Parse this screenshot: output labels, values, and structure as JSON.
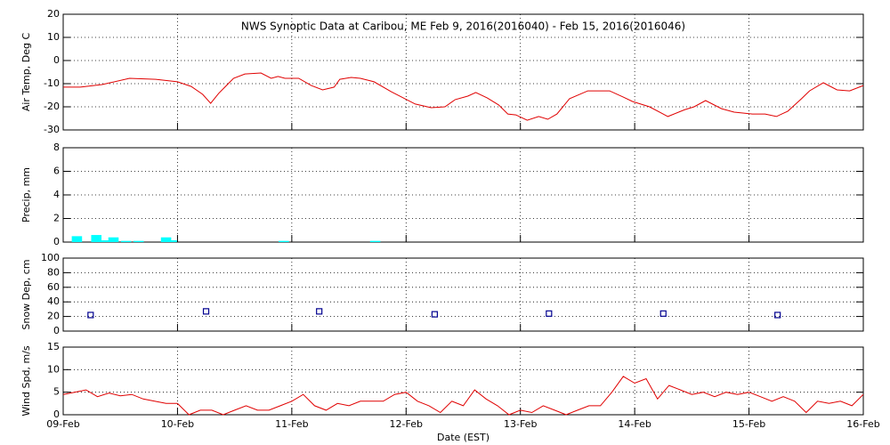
{
  "chart_data": [
    {
      "type": "line",
      "title": "NWS Synoptic Data at Caribou, ME   Feb  9, 2016(2016040) - Feb 15, 2016(2016046)",
      "ylabel": "Air Temp, Deg C",
      "color": "#e00000",
      "grid": true,
      "xlim": [
        0,
        7
      ],
      "ylim": [
        -30,
        20
      ],
      "yticks": [
        -30,
        -20,
        -10,
        0,
        10,
        20
      ],
      "x": [
        0,
        0.15,
        0.34,
        0.58,
        0.81,
        1.0,
        1.12,
        1.22,
        1.29,
        1.36,
        1.49,
        1.59,
        1.73,
        1.82,
        1.88,
        1.94,
        2.06,
        2.17,
        2.27,
        2.37,
        2.42,
        2.52,
        2.6,
        2.72,
        2.87,
        3.08,
        3.22,
        3.34,
        3.43,
        3.54,
        3.61,
        3.71,
        3.81,
        3.89,
        3.96,
        4.06,
        4.16,
        4.24,
        4.32,
        4.43,
        4.59,
        4.78,
        4.9,
        4.98,
        5.13,
        5.29,
        5.44,
        5.52,
        5.62,
        5.76,
        5.87,
        6.03,
        6.14,
        6.24,
        6.34,
        6.46,
        6.53,
        6.65,
        6.77,
        6.88,
        7.0
      ],
      "values": [
        -11.5,
        -11.5,
        -10.4,
        -7.7,
        -8.1,
        -9.2,
        -11.2,
        -14.6,
        -18.5,
        -14.2,
        -7.7,
        -5.8,
        -5.4,
        -7.7,
        -6.9,
        -7.7,
        -7.7,
        -10.8,
        -12.7,
        -11.5,
        -8.1,
        -7.3,
        -7.7,
        -9.2,
        -13.5,
        -18.8,
        -20.4,
        -20,
        -16.9,
        -15.4,
        -13.8,
        -16.2,
        -19.2,
        -23.1,
        -23.5,
        -25.8,
        -24.2,
        -25.4,
        -23.1,
        -16.5,
        -13.1,
        -13.1,
        -15.8,
        -17.7,
        -20,
        -24.2,
        -21.2,
        -20,
        -17.3,
        -20.8,
        -22.3,
        -23.1,
        -23.1,
        -24.2,
        -21.9,
        -16.5,
        -13.1,
        -9.6,
        -12.7,
        -13.1,
        -10.8
      ]
    },
    {
      "type": "bar",
      "ylabel": "Precip, mm",
      "color": "#00ffff",
      "grid": true,
      "xlim": [
        0,
        7
      ],
      "ylim": [
        0,
        8
      ],
      "yticks": [
        0,
        2,
        4,
        6,
        8
      ],
      "x": [
        0.12,
        0.29,
        0.38,
        0.44,
        0.55,
        0.66,
        0.9,
        0.95,
        1.93,
        2.73
      ],
      "values": [
        0.5,
        0.6,
        0.15,
        0.4,
        0.1,
        0.1,
        0.4,
        0.15,
        0.1,
        0.1
      ]
    },
    {
      "type": "scatter",
      "ylabel": "Snow Dep, cm",
      "color": "#000090",
      "grid": true,
      "xlim": [
        0,
        7
      ],
      "ylim": [
        0,
        100
      ],
      "yticks": [
        0,
        20,
        40,
        60,
        80,
        100
      ],
      "x": [
        0.24,
        1.25,
        2.24,
        3.25,
        4.25,
        5.25,
        6.25
      ],
      "values": [
        22,
        27,
        27,
        23,
        24,
        24,
        22
      ]
    },
    {
      "type": "line",
      "ylabel": "Wind Spd, m/s",
      "xlabel": "Date (EST)",
      "color": "#e00000",
      "grid": true,
      "xlim": [
        0,
        7
      ],
      "ylim": [
        0,
        15
      ],
      "yticks": [
        0,
        5,
        10,
        15
      ],
      "xticks": [
        {
          "value": 0,
          "label": "09-Feb"
        },
        {
          "value": 1,
          "label": "10-Feb"
        },
        {
          "value": 2,
          "label": "11-Feb"
        },
        {
          "value": 3,
          "label": "12-Feb"
        },
        {
          "value": 4,
          "label": "13-Feb"
        },
        {
          "value": 5,
          "label": "14-Feb"
        },
        {
          "value": 6,
          "label": "15-Feb"
        },
        {
          "value": 7,
          "label": "16-Feb"
        }
      ],
      "x": [
        0,
        0.1,
        0.2,
        0.3,
        0.4,
        0.5,
        0.6,
        0.7,
        0.8,
        0.9,
        1.0,
        1.1,
        1.2,
        1.3,
        1.4,
        1.5,
        1.6,
        1.7,
        1.8,
        1.9,
        2.0,
        2.1,
        2.2,
        2.3,
        2.4,
        2.5,
        2.6,
        2.7,
        2.8,
        2.9,
        3.0,
        3.1,
        3.2,
        3.3,
        3.4,
        3.5,
        3.6,
        3.7,
        3.8,
        3.9,
        4.0,
        4.1,
        4.2,
        4.3,
        4.4,
        4.5,
        4.6,
        4.7,
        4.8,
        4.9,
        5.0,
        5.1,
        5.2,
        5.3,
        5.4,
        5.5,
        5.6,
        5.7,
        5.8,
        5.9,
        6.0,
        6.1,
        6.2,
        6.3,
        6.4,
        6.5,
        6.6,
        6.7,
        6.8,
        6.9,
        7.0
      ],
      "values": [
        4.5,
        5,
        5.5,
        4,
        4.8,
        4.2,
        4.5,
        3.5,
        3,
        2.5,
        2.5,
        0,
        1,
        1,
        0,
        1,
        2,
        1,
        1,
        2,
        3,
        4.5,
        2,
        1,
        2.5,
        2,
        3,
        3,
        3,
        4.5,
        5,
        3,
        2,
        0.5,
        3,
        2,
        5.5,
        3.5,
        2,
        0,
        1,
        0.5,
        2,
        1,
        0,
        1,
        2,
        2,
        5,
        8.5,
        7,
        8,
        3.5,
        6.5,
        5.5,
        4.5,
        5,
        4,
        5,
        4.5,
        5,
        4,
        3,
        4,
        3,
        0.5,
        3,
        2.5,
        3,
        2,
        4.5
      ]
    }
  ]
}
